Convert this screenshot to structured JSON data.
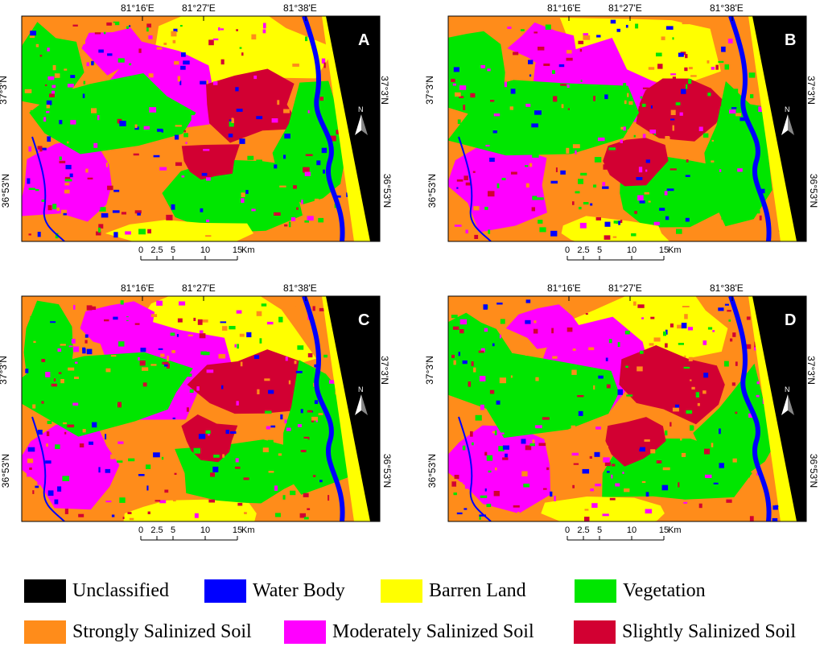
{
  "colors": {
    "unclassified": "#000000",
    "water_body": "#0000ff",
    "barren_land": "#ffff00",
    "vegetation": "#00e600",
    "strongly_salinized": "#ff8c1a",
    "moderately_salinized": "#ff00ff",
    "slightly_salinized": "#d20032"
  },
  "panels": [
    {
      "letter": "A"
    },
    {
      "letter": "B"
    },
    {
      "letter": "C"
    },
    {
      "letter": "D"
    }
  ],
  "longitude_ticks": [
    "81°16'E",
    "81°27'E",
    "81°38'E"
  ],
  "latitude_ticks": [
    "37°3'N",
    "36°53'N"
  ],
  "scale_bar": {
    "ticks": [
      "0",
      "2.5",
      "5",
      "10",
      "15"
    ],
    "unit": "Km"
  },
  "north_arrow_label": "N",
  "legend": [
    {
      "label": "Unclassified",
      "color_key": "unclassified"
    },
    {
      "label": "Water Body",
      "color_key": "water_body"
    },
    {
      "label": "Barren Land",
      "color_key": "barren_land"
    },
    {
      "label": "Vegetation",
      "color_key": "vegetation"
    },
    {
      "label": "Strongly Salinized Soil",
      "color_key": "strongly_salinized"
    },
    {
      "label": "Moderately Salinized Soil",
      "color_key": "moderately_salinized"
    },
    {
      "label": "Slightly Salinized Soil",
      "color_key": "slightly_salinized"
    }
  ]
}
